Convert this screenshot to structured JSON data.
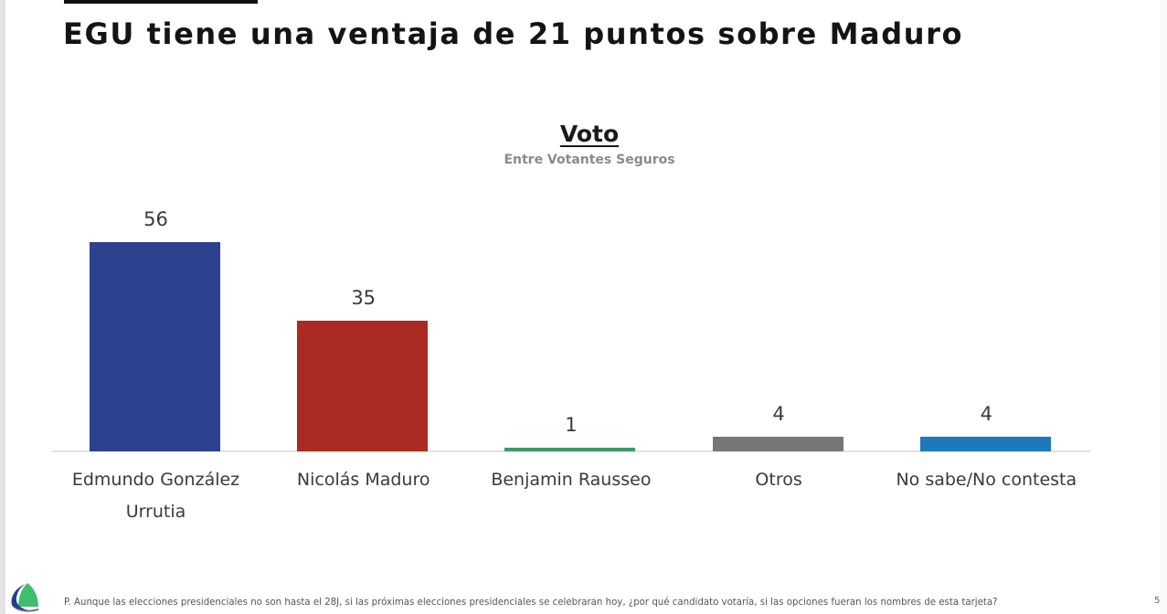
{
  "slide": {
    "title": "EGU tiene una ventaja de 21 puntos sobre Maduro",
    "footnote": "P. Aunque las elecciones presidenciales no son hasta el 28J, si las próximas elecciones presidenciales se celebraran hoy, ¿por qué candidato votaría, si las opciones fueran los nombres de esta tarjeta?",
    "page_number": "5",
    "logo": "pollster-logo-icon"
  },
  "chart_data": {
    "type": "bar",
    "title": "Voto",
    "subtitle": "Entre Votantes Seguros",
    "categories": [
      "Edmundo González Urrutia",
      "Nicolás Maduro",
      "Benjamin Rausseo",
      "Otros",
      "No sabe/No contesta"
    ],
    "category_lines": [
      [
        "Edmundo González",
        "Urrutia"
      ],
      [
        "Nicolás Maduro"
      ],
      [
        "Benjamin Rausseo"
      ],
      [
        "Otros"
      ],
      [
        "No sabe/No contesta"
      ]
    ],
    "values": [
      56,
      35,
      1,
      4,
      4
    ],
    "value_labels": [
      "56",
      "35",
      "1",
      "4",
      "4"
    ],
    "colors": [
      "#2e418f",
      "#a92b21",
      "#3d9a6a",
      "#777777",
      "#1d79ba"
    ],
    "xlabel": "",
    "ylabel": "",
    "ylim": [
      0,
      60
    ],
    "grid": false,
    "legend": "none",
    "data_labels": true
  }
}
